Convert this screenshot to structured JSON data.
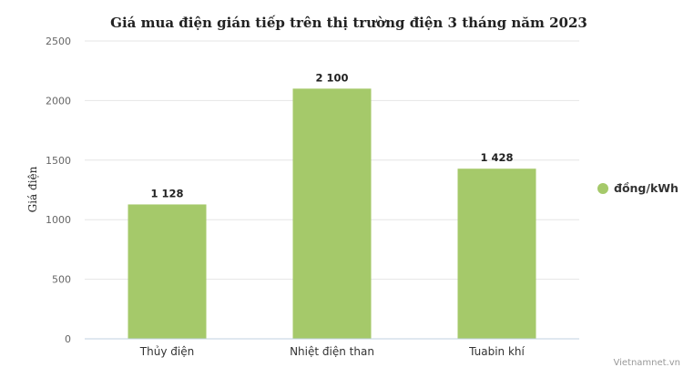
{
  "chart_data": {
    "type": "bar",
    "title": "Giá mua điện gián tiếp trên thị trường điện 3 tháng năm 2023",
    "xlabel": "",
    "ylabel": "Giá điện",
    "categories": [
      "Thủy điện",
      "Nhiệt điện than",
      "Tuabin khí"
    ],
    "series": [
      {
        "name": "đồng/kWh",
        "values": [
          1128,
          2100,
          1428
        ],
        "labels": [
          "1 128",
          "2 100",
          "1 428"
        ],
        "color": "#a5c96a"
      }
    ],
    "ylim": [
      0,
      2500
    ],
    "yticks": [
      0,
      500,
      1000,
      1500,
      2000,
      2500
    ],
    "grid": true,
    "legend": "right"
  },
  "credit": "Vietnamnet.vn"
}
